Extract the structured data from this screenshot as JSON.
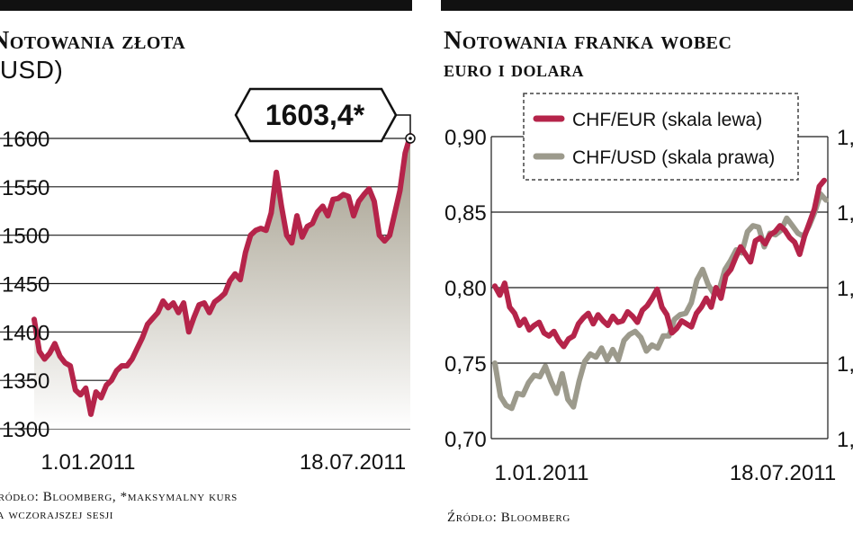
{
  "left_panel": {
    "title_line1": "Notowania złota",
    "title_line2": "(USD)",
    "callout": "1603,4*",
    "source_line1": "Źródło: Bloomberg, *maksymalny kurs",
    "source_line2": "na wczorajszej sesji"
  },
  "right_panel": {
    "title_line1": "Notowania franka wobec",
    "title_line2": "euro i dolara",
    "source": "Źródło: Bloomberg"
  },
  "colors": {
    "gold_line": "#b5244a",
    "gold_fill_top": "#a09a88",
    "gold_fill_bottom": "#ffffff",
    "chf_eur": "#b5244a",
    "chf_usd": "#9c9a8c",
    "grid": "#1a1a1a"
  },
  "chart_data": [
    {
      "type": "area",
      "title": "Notowania złota (USD)",
      "xlabel": "",
      "ylabel": "",
      "ylim": [
        1300,
        1600
      ],
      "y_ticks": [
        1300,
        1350,
        1400,
        1450,
        1500,
        1550,
        1600
      ],
      "y_tick_labels": [
        "1300",
        "1350",
        "1400",
        "1450",
        "1500",
        "1550",
        "1600"
      ],
      "x_tick_labels": [
        "1.01.2011",
        "18.07.2011"
      ],
      "grid": true,
      "annotation": "1603,4*",
      "series": [
        {
          "values": [
            1413,
            1380,
            1372,
            1378,
            1388,
            1375,
            1368,
            1365,
            1340,
            1335,
            1342,
            1315,
            1338,
            1332,
            1345,
            1350,
            1360,
            1365,
            1365,
            1372,
            1383,
            1394,
            1408,
            1414,
            1420,
            1432,
            1425,
            1430,
            1420,
            1430,
            1400,
            1415,
            1428,
            1430,
            1420,
            1431,
            1435,
            1440,
            1453,
            1460,
            1454,
            1482,
            1500,
            1505,
            1507,
            1505,
            1523,
            1565,
            1530,
            1500,
            1492,
            1520,
            1498,
            1509,
            1512,
            1524,
            1530,
            1520,
            1537,
            1538,
            1542,
            1540,
            1520,
            1535,
            1542,
            1548,
            1535,
            1500,
            1494,
            1500,
            1523,
            1546,
            1585,
            1603
          ]
        }
      ]
    },
    {
      "type": "line",
      "title": "Notowania franka wobec euro i dolara",
      "xlabel": "",
      "ylabel": "",
      "ylim": [
        0.7,
        0.9
      ],
      "y_ticks": [
        0.7,
        0.75,
        0.8,
        0.85,
        0.9
      ],
      "y_tick_labels": [
        "0,70",
        "0,75",
        "0,80",
        "0,85",
        "0,90"
      ],
      "right_axis_label": "1,",
      "x_tick_labels": [
        "1.01.2011",
        "18.07.2011"
      ],
      "grid": true,
      "legend_position": "top-center",
      "series": [
        {
          "name": "CHF/EUR (skala lewa)",
          "values": [
            0.801,
            0.795,
            0.803,
            0.787,
            0.783,
            0.775,
            0.779,
            0.772,
            0.775,
            0.777,
            0.77,
            0.768,
            0.771,
            0.765,
            0.761,
            0.766,
            0.768,
            0.776,
            0.78,
            0.783,
            0.776,
            0.782,
            0.778,
            0.775,
            0.781,
            0.777,
            0.778,
            0.784,
            0.781,
            0.777,
            0.785,
            0.788,
            0.793,
            0.799,
            0.787,
            0.782,
            0.77,
            0.773,
            0.778,
            0.776,
            0.774,
            0.783,
            0.787,
            0.793,
            0.787,
            0.8,
            0.793,
            0.808,
            0.812,
            0.82,
            0.827,
            0.822,
            0.817,
            0.831,
            0.833,
            0.829,
            0.835,
            0.837,
            0.841,
            0.838,
            0.833,
            0.83,
            0.822,
            0.834,
            0.843,
            0.852,
            0.867,
            0.871
          ]
        },
        {
          "name": "CHF/USD (skala prawa)",
          "values": [
            0.75,
            0.728,
            0.722,
            0.72,
            0.73,
            0.729,
            0.737,
            0.742,
            0.741,
            0.748,
            0.738,
            0.73,
            0.743,
            0.726,
            0.721,
            0.738,
            0.751,
            0.756,
            0.754,
            0.76,
            0.752,
            0.759,
            0.752,
            0.765,
            0.769,
            0.771,
            0.767,
            0.758,
            0.762,
            0.76,
            0.768,
            0.768,
            0.779,
            0.782,
            0.783,
            0.79,
            0.805,
            0.812,
            0.802,
            0.796,
            0.799,
            0.812,
            0.818,
            0.825,
            0.823,
            0.837,
            0.841,
            0.84,
            0.827,
            0.836,
            0.835,
            0.838,
            0.846,
            0.841,
            0.836,
            0.834,
            0.841,
            0.85,
            0.862,
            0.858
          ]
        }
      ]
    }
  ]
}
